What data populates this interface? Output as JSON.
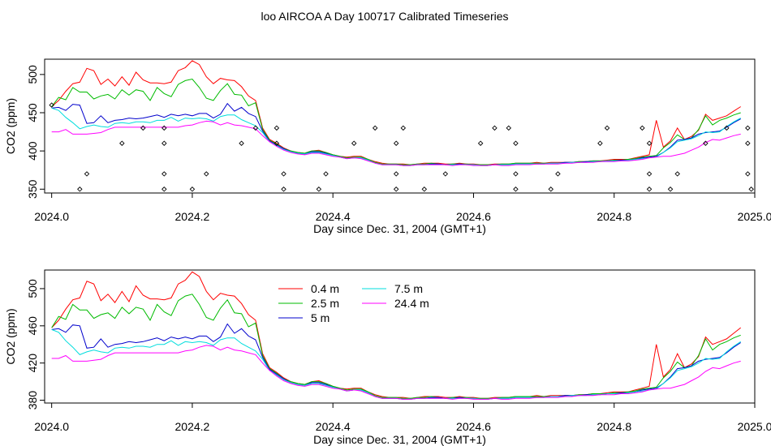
{
  "title": "loo AIRCOA A  Day 100717  Calibrated Timeseries",
  "chart_data": [
    {
      "type": "line",
      "ylabel": "CO2 (ppm)",
      "xlabel": "Day since Dec. 31, 2004 (GMT+1)",
      "xlim": [
        2023.99,
        2025.0
      ],
      "ylim": [
        345,
        520
      ],
      "x_ticks": [
        "2024.0",
        "2024.2",
        "2024.4",
        "2024.6",
        "2024.8",
        "2025.0"
      ],
      "y_ticks": [
        "350",
        "400",
        "450",
        "500"
      ],
      "legend": "none",
      "x": [
        2024.0,
        2024.01,
        2024.02,
        2024.03,
        2024.04,
        2024.05,
        2024.06,
        2024.07,
        2024.08,
        2024.09,
        2024.1,
        2024.11,
        2024.12,
        2024.13,
        2024.14,
        2024.15,
        2024.16,
        2024.17,
        2024.18,
        2024.19,
        2024.2,
        2024.21,
        2024.22,
        2024.23,
        2024.24,
        2024.25,
        2024.26,
        2024.27,
        2024.28,
        2024.29,
        2024.3,
        2024.31,
        2024.32,
        2024.33,
        2024.34,
        2024.35,
        2024.36,
        2024.37,
        2024.38,
        2024.39,
        2024.4,
        2024.41,
        2024.42,
        2024.43,
        2024.44,
        2024.45,
        2024.46,
        2024.47,
        2024.48,
        2024.49,
        2024.5,
        2024.51,
        2024.52,
        2024.53,
        2024.54,
        2024.55,
        2024.56,
        2024.57,
        2024.58,
        2024.59,
        2024.6,
        2024.61,
        2024.62,
        2024.63,
        2024.64,
        2024.65,
        2024.66,
        2024.67,
        2024.68,
        2024.69,
        2024.7,
        2024.71,
        2024.72,
        2024.73,
        2024.74,
        2024.75,
        2024.76,
        2024.77,
        2024.78,
        2024.79,
        2024.8,
        2024.81,
        2024.82,
        2024.83,
        2024.84,
        2024.85,
        2024.86,
        2024.87,
        2024.88,
        2024.89,
        2024.9,
        2024.91,
        2024.92,
        2024.93,
        2024.94,
        2024.95,
        2024.96,
        2024.97,
        2024.98
      ],
      "series": [
        {
          "color": "#ff0000",
          "values": [
            458,
            466,
            478,
            488,
            490,
            508,
            505,
            487,
            494,
            485,
            497,
            486,
            503,
            493,
            489,
            489,
            488,
            490,
            505,
            509,
            518,
            513,
            497,
            488,
            495,
            493,
            492,
            484,
            472,
            466,
            430,
            415,
            410,
            404,
            400,
            398,
            397,
            400,
            401,
            398,
            395,
            393,
            392,
            393,
            393,
            389,
            386,
            384,
            383,
            383,
            383,
            382,
            383,
            384,
            384,
            384,
            383,
            383,
            384,
            383,
            383,
            382,
            382,
            383,
            383,
            383,
            384,
            384,
            384,
            385,
            384,
            385,
            385,
            385,
            385,
            386,
            386,
            387,
            387,
            388,
            389,
            389,
            389,
            391,
            393,
            395,
            440,
            405,
            413,
            430,
            415,
            419,
            427,
            448,
            440,
            443,
            446,
            452,
            458
          ]
        },
        {
          "color": "#00bb00",
          "values": [
            458,
            470,
            467,
            483,
            477,
            477,
            468,
            472,
            474,
            468,
            480,
            473,
            480,
            478,
            466,
            483,
            475,
            471,
            487,
            492,
            494,
            483,
            469,
            466,
            479,
            488,
            474,
            473,
            459,
            463,
            428,
            414,
            409,
            403,
            400,
            398,
            397,
            400,
            400,
            398,
            395,
            393,
            391,
            392,
            392,
            389,
            385,
            383,
            383,
            383,
            382,
            382,
            383,
            383,
            384,
            383,
            382,
            383,
            383,
            383,
            382,
            382,
            382,
            382,
            383,
            383,
            384,
            384,
            384,
            384,
            384,
            384,
            384,
            385,
            385,
            386,
            386,
            387,
            387,
            387,
            388,
            388,
            389,
            390,
            392,
            393,
            394,
            404,
            411,
            421,
            415,
            417,
            428,
            446,
            434,
            440,
            443,
            447,
            450
          ]
        },
        {
          "color": "#0000cc",
          "values": [
            456,
            457,
            453,
            461,
            460,
            436,
            437,
            446,
            437,
            440,
            441,
            443,
            442,
            443,
            445,
            447,
            444,
            448,
            446,
            448,
            446,
            449,
            449,
            443,
            448,
            462,
            452,
            457,
            449,
            445,
            426,
            413,
            408,
            403,
            399,
            397,
            396,
            399,
            399,
            397,
            394,
            392,
            390,
            391,
            391,
            388,
            384,
            382,
            382,
            382,
            381,
            381,
            382,
            382,
            383,
            383,
            382,
            382,
            383,
            382,
            382,
            381,
            381,
            382,
            382,
            382,
            383,
            383,
            383,
            383,
            383,
            384,
            384,
            385,
            385,
            385,
            386,
            386,
            386,
            387,
            387,
            388,
            388,
            389,
            391,
            392,
            393,
            398,
            405,
            414,
            415,
            417,
            422,
            424,
            425,
            426,
            431,
            437,
            442
          ]
        },
        {
          "color": "#00dddd",
          "values": [
            456,
            453,
            444,
            437,
            429,
            432,
            434,
            432,
            431,
            436,
            437,
            436,
            438,
            438,
            437,
            440,
            440,
            444,
            439,
            443,
            442,
            443,
            442,
            439,
            445,
            447,
            447,
            441,
            437,
            433,
            424,
            412,
            407,
            402,
            399,
            397,
            396,
            398,
            398,
            396,
            394,
            392,
            390,
            391,
            391,
            388,
            384,
            382,
            382,
            382,
            381,
            381,
            382,
            382,
            382,
            382,
            382,
            382,
            382,
            382,
            382,
            381,
            381,
            382,
            382,
            382,
            383,
            383,
            383,
            383,
            383,
            384,
            384,
            384,
            385,
            385,
            385,
            386,
            386,
            387,
            387,
            387,
            388,
            389,
            390,
            391,
            392,
            398,
            404,
            412,
            414,
            416,
            420,
            425,
            424,
            425,
            432,
            438,
            443
          ]
        },
        {
          "color": "#ff00ff",
          "values": [
            425,
            425,
            428,
            422,
            422,
            422,
            423,
            424,
            428,
            431,
            431,
            431,
            431,
            431,
            431,
            431,
            431,
            431,
            431,
            433,
            434,
            437,
            439,
            438,
            434,
            437,
            434,
            433,
            431,
            429,
            420,
            412,
            406,
            401,
            398,
            396,
            395,
            397,
            397,
            395,
            393,
            392,
            390,
            391,
            390,
            387,
            384,
            382,
            382,
            382,
            381,
            381,
            382,
            382,
            382,
            382,
            382,
            381,
            382,
            382,
            381,
            381,
            381,
            382,
            381,
            381,
            382,
            382,
            382,
            383,
            383,
            383,
            383,
            384,
            384,
            385,
            385,
            385,
            386,
            386,
            386,
            387,
            387,
            388,
            389,
            391,
            392,
            393,
            393,
            395,
            397,
            401,
            405,
            411,
            415,
            414,
            417,
            420,
            422
          ]
        }
      ],
      "points": {
        "marker": "open-diamond",
        "x": [
          2024.0,
          2024.04,
          2024.05,
          2024.1,
          2024.13,
          2024.16,
          2024.16,
          2024.16,
          2024.16,
          2024.2,
          2024.22,
          2024.27,
          2024.29,
          2024.32,
          2024.32,
          2024.33,
          2024.33,
          2024.38,
          2024.39,
          2024.43,
          2024.46,
          2024.49,
          2024.49,
          2024.49,
          2024.5,
          2024.53,
          2024.56,
          2024.61,
          2024.63,
          2024.65,
          2024.66,
          2024.66,
          2024.66,
          2024.71,
          2024.72,
          2024.78,
          2024.79,
          2024.84,
          2024.85,
          2024.85,
          2024.85,
          2024.88,
          2024.89,
          2024.93,
          2024.96,
          2024.99,
          2024.99,
          2024.99,
          2024.995
        ],
        "y": [
          460,
          350,
          370,
          410,
          430,
          350,
          370,
          410,
          430,
          350,
          370,
          410,
          430,
          430,
          410,
          370,
          350,
          350,
          370,
          410,
          430,
          350,
          370,
          410,
          430,
          350,
          370,
          410,
          430,
          430,
          410,
          370,
          350,
          350,
          370,
          410,
          430,
          430,
          410,
          370,
          350,
          350,
          370,
          410,
          430,
          430,
          410,
          370,
          350
        ]
      }
    },
    {
      "type": "line",
      "ylabel": "CO2 (ppm)",
      "xlabel": "Day since Dec. 31, 2004 (GMT+1)",
      "xlim": [
        2023.99,
        2025.0
      ],
      "ylim": [
        377,
        520
      ],
      "x_ticks": [
        "2024.0",
        "2024.2",
        "2024.4",
        "2024.6",
        "2024.8",
        "2025.0"
      ],
      "y_ticks": [
        "380",
        "420",
        "460",
        "500"
      ],
      "legend": "top-center",
      "series_ref": "same as panel 1",
      "legend_entries": [
        {
          "label": "0.4 m",
          "color": "#ff0000"
        },
        {
          "label": "2.5 m",
          "color": "#00bb00"
        },
        {
          "label": "5 m",
          "color": "#0000cc"
        },
        {
          "label": "7.5 m",
          "color": "#00dddd"
        },
        {
          "label": "24.4 m",
          "color": "#ff00ff"
        }
      ]
    }
  ]
}
